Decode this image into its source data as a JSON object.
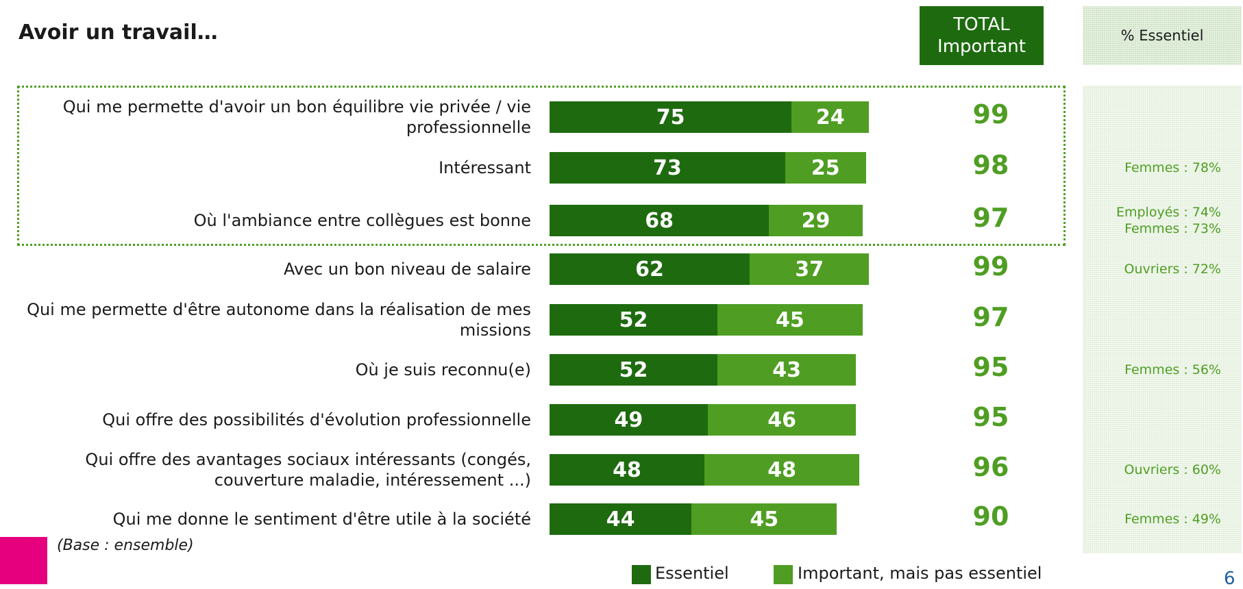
{
  "chart_data": {
    "type": "bar",
    "orientation": "horizontal",
    "stacked": true,
    "title": "Avoir un travail…",
    "categories": [
      "Qui me permette d'avoir un bon équilibre vie privée / vie professionnelle",
      "Intéressant",
      "Où l'ambiance entre collègues est bonne",
      "Avec un bon niveau de salaire",
      "Qui me permette d'être autonome dans la réalisation de mes missions",
      "Où je suis reconnu(e)",
      "Qui offre des possibilités d'évolution professionnelle",
      "Qui offre des avantages sociaux intéressants (congés, couverture maladie, intéressement ...)",
      "Qui me donne le sentiment d'être utile à la société"
    ],
    "series": [
      {
        "name": "Essentiel",
        "color": "#1e6b0f",
        "values": [
          75,
          73,
          68,
          62,
          52,
          52,
          49,
          48,
          44
        ]
      },
      {
        "name": "Important, mais pas essentiel",
        "color": "#4f9e23",
        "values": [
          24,
          25,
          29,
          37,
          45,
          43,
          46,
          48,
          45
        ]
      }
    ],
    "total_header": [
      "TOTAL",
      "Important"
    ],
    "totals": [
      99,
      98,
      97,
      99,
      97,
      95,
      95,
      96,
      90
    ],
    "essentiel_header": "% Essentiel",
    "essentiel_notes": [
      [],
      [
        "Femmes : 78%"
      ],
      [
        "Employés : 74%",
        "Femmes : 73%"
      ],
      [
        "Ouvriers : 72%"
      ],
      [],
      [
        "Femmes : 56%"
      ],
      [],
      [
        "Ouvriers : 60%"
      ],
      [
        "Femmes : 49%"
      ]
    ],
    "base_note": "(Base : ensemble)",
    "page_number": "6"
  }
}
